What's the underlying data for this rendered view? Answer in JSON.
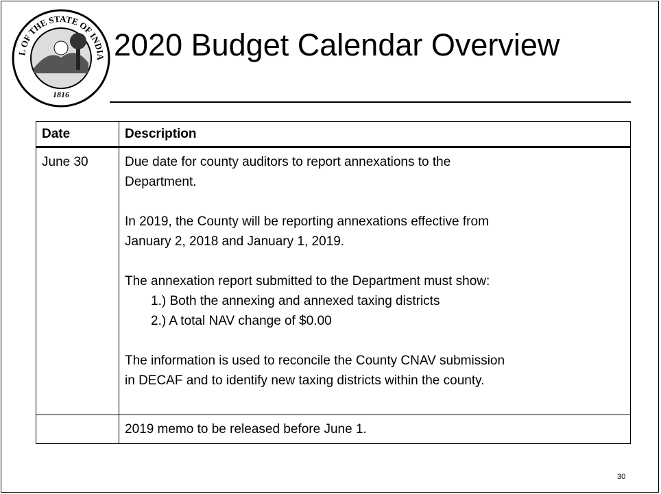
{
  "header": {
    "title": "2020 Budget Calendar Overview",
    "seal_text": "SEAL OF THE STATE OF INDIANA",
    "seal_year": "1816"
  },
  "table": {
    "columns": [
      "Date",
      "Description"
    ],
    "rows": [
      {
        "date": "June 30",
        "blocks": [
          {
            "lines": [
              "Due date for county auditors to report annexations to the",
              "Department."
            ]
          },
          {
            "lines": [
              "In 2019, the County will be reporting annexations effective from",
              "January 2, 2018 and January 1, 2019."
            ]
          },
          {
            "lines": [
              "The annexation report submitted to the Department must show:"
            ],
            "items": [
              "1.) Both the annexing and annexed taxing districts",
              "2.) A total NAV change of $0.00"
            ]
          },
          {
            "lines": [
              "The information is used to reconcile the County CNAV submission",
              "in DECAF and to identify new taxing districts within the county."
            ]
          }
        ]
      },
      {
        "date": null,
        "blocks": [
          {
            "lines": [
              "2019 memo to be released before June 1."
            ]
          }
        ]
      }
    ]
  },
  "footer": {
    "page_number": "30"
  }
}
